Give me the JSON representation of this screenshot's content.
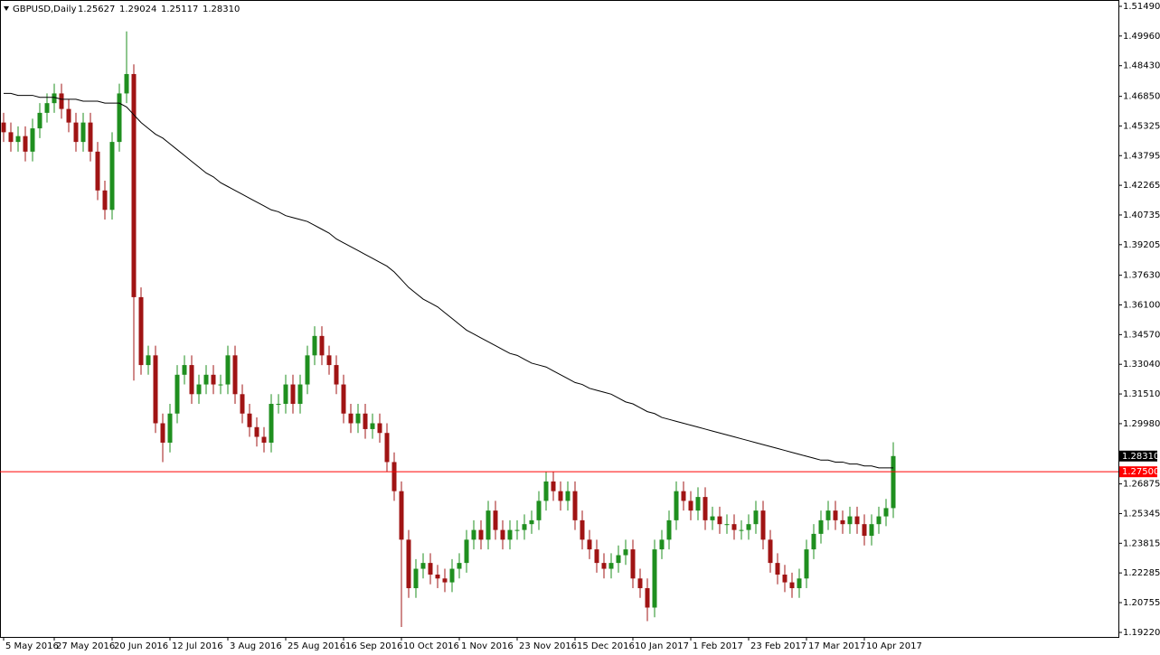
{
  "chart_data": {
    "type": "candlestick",
    "symbol": "GBPUSD,Daily",
    "header_ohlc": [
      1.25627,
      1.29024,
      1.25117,
      {
        "value": 1.2831,
        "label": "1.28310"
      }
    ],
    "categories": [
      "5 May 2016",
      null,
      null,
      null,
      null,
      null,
      null,
      "27 May 2016",
      null,
      null,
      null,
      null,
      null,
      null,
      null,
      "20 Jun 2016",
      null,
      null,
      null,
      null,
      null,
      null,
      null,
      "12 Jul 2016",
      null,
      null,
      null,
      null,
      null,
      null,
      null,
      "3 Aug 2016",
      null,
      null,
      null,
      null,
      null,
      null,
      null,
      "25 Aug 2016",
      null,
      null,
      null,
      null,
      null,
      null,
      null,
      "16 Sep 2016",
      null,
      null,
      null,
      null,
      null,
      null,
      null,
      "10 Oct 2016",
      null,
      null,
      null,
      null,
      null,
      null,
      null,
      "1 Nov 2016",
      null,
      null,
      null,
      null,
      null,
      null,
      null,
      "23 Nov 2016",
      null,
      null,
      null,
      null,
      null,
      null,
      null,
      "15 Dec 2016",
      null,
      null,
      null,
      null,
      null,
      null,
      null,
      "10 Jan 2017",
      null,
      null,
      null,
      null,
      null,
      null,
      null,
      "1 Feb 2017",
      null,
      null,
      null,
      null,
      null,
      null,
      null,
      "23 Feb 2017",
      null,
      null,
      null,
      null,
      null,
      null,
      null,
      "17 Mar 2017",
      null,
      null,
      null,
      null,
      null,
      null,
      null,
      "10 Apr 2017",
      null,
      null,
      null,
      null
    ],
    "open": [
      1.455,
      1.45,
      1.445,
      1.448,
      1.44,
      1.452,
      1.46,
      1.465,
      1.47,
      1.462,
      1.455,
      1.445,
      1.455,
      1.44,
      1.42,
      1.41,
      1.445,
      1.47,
      1.48,
      1.365,
      1.33,
      1.335,
      1.3,
      1.29,
      1.305,
      1.325,
      1.33,
      1.315,
      1.32,
      1.325,
      1.32,
      1.32,
      1.335,
      1.315,
      1.305,
      1.298,
      1.293,
      1.29,
      1.31,
      1.31,
      1.32,
      1.31,
      1.32,
      1.335,
      1.345,
      1.335,
      1.33,
      1.32,
      1.305,
      1.3,
      1.305,
      1.297,
      1.3,
      1.295,
      1.28,
      1.265,
      1.24,
      1.215,
      1.225,
      1.228,
      1.222,
      1.22,
      1.218,
      1.225,
      1.228,
      1.24,
      1.245,
      1.24,
      1.255,
      1.245,
      1.24,
      1.245,
      1.245,
      1.248,
      1.25,
      1.26,
      1.27,
      1.265,
      1.26,
      1.265,
      1.25,
      1.24,
      1.235,
      1.228,
      1.225,
      1.228,
      1.232,
      1.235,
      1.22,
      1.215,
      1.205,
      1.235,
      1.24,
      1.25,
      1.265,
      1.26,
      1.255,
      1.262,
      1.25,
      1.252,
      1.248,
      1.248,
      1.245,
      1.245,
      1.248,
      1.255,
      1.24,
      1.228,
      1.222,
      1.218,
      1.215,
      1.22,
      1.235,
      1.243,
      1.25,
      1.255,
      1.25,
      1.248,
      1.252,
      1.248,
      1.242,
      1.248,
      1.252,
      1.25627
    ],
    "high": [
      1.46,
      1.455,
      1.453,
      1.453,
      1.457,
      1.465,
      1.47,
      1.475,
      1.475,
      1.467,
      1.46,
      1.46,
      1.46,
      1.445,
      1.425,
      1.45,
      1.475,
      1.502,
      1.485,
      1.37,
      1.34,
      1.34,
      1.305,
      1.31,
      1.33,
      1.335,
      1.335,
      1.325,
      1.33,
      1.33,
      1.325,
      1.34,
      1.34,
      1.32,
      1.31,
      1.303,
      1.298,
      1.315,
      1.315,
      1.325,
      1.325,
      1.325,
      1.34,
      1.35,
      1.35,
      1.34,
      1.335,
      1.325,
      1.31,
      1.31,
      1.31,
      1.305,
      1.305,
      1.3,
      1.285,
      1.27,
      1.245,
      1.23,
      1.233,
      1.233,
      1.227,
      1.225,
      1.23,
      1.233,
      1.245,
      1.25,
      1.25,
      1.26,
      1.26,
      1.25,
      1.25,
      1.25,
      1.253,
      1.255,
      1.265,
      1.275,
      1.275,
      1.27,
      1.27,
      1.27,
      1.255,
      1.245,
      1.24,
      1.233,
      1.233,
      1.237,
      1.24,
      1.24,
      1.225,
      1.22,
      1.24,
      1.245,
      1.255,
      1.27,
      1.27,
      1.265,
      1.267,
      1.267,
      1.257,
      1.257,
      1.253,
      1.253,
      1.25,
      1.253,
      1.26,
      1.26,
      1.245,
      1.233,
      1.227,
      1.223,
      1.225,
      1.24,
      1.248,
      1.255,
      1.26,
      1.26,
      1.255,
      1.257,
      1.257,
      1.253,
      1.253,
      1.257,
      1.261,
      1.29024
    ],
    "low": [
      1.445,
      1.44,
      1.44,
      1.435,
      1.435,
      1.447,
      1.455,
      1.46,
      1.457,
      1.45,
      1.44,
      1.44,
      1.435,
      1.415,
      1.405,
      1.405,
      1.44,
      1.465,
      1.322,
      1.325,
      1.325,
      1.295,
      1.28,
      1.285,
      1.3,
      1.32,
      1.31,
      1.31,
      1.315,
      1.315,
      1.315,
      1.315,
      1.31,
      1.3,
      1.293,
      1.288,
      1.285,
      1.285,
      1.305,
      1.305,
      1.305,
      1.305,
      1.315,
      1.33,
      1.33,
      1.325,
      1.315,
      1.3,
      1.295,
      1.295,
      1.292,
      1.292,
      1.29,
      1.275,
      1.26,
      1.195,
      1.21,
      1.21,
      1.22,
      1.217,
      1.215,
      1.213,
      1.213,
      1.22,
      1.223,
      1.235,
      1.235,
      1.235,
      1.24,
      1.235,
      1.235,
      1.24,
      1.24,
      1.243,
      1.245,
      1.255,
      1.26,
      1.255,
      1.255,
      1.245,
      1.235,
      1.23,
      1.223,
      1.22,
      1.22,
      1.223,
      1.227,
      1.215,
      1.21,
      1.198,
      1.2,
      1.23,
      1.235,
      1.245,
      1.255,
      1.25,
      1.25,
      1.245,
      1.245,
      1.243,
      1.243,
      1.24,
      1.24,
      1.24,
      1.243,
      1.235,
      1.223,
      1.217,
      1.213,
      1.21,
      1.21,
      1.215,
      1.23,
      1.238,
      1.245,
      1.245,
      1.243,
      1.243,
      1.243,
      1.237,
      1.237,
      1.243,
      1.247,
      1.25117
    ],
    "close": [
      1.45,
      1.445,
      1.448,
      1.44,
      1.452,
      1.46,
      1.465,
      1.47,
      1.462,
      1.455,
      1.445,
      1.455,
      1.44,
      1.42,
      1.41,
      1.445,
      1.47,
      1.48,
      1.365,
      1.33,
      1.335,
      1.3,
      1.29,
      1.305,
      1.325,
      1.33,
      1.315,
      1.32,
      1.325,
      1.32,
      1.32,
      1.335,
      1.315,
      1.305,
      1.298,
      1.293,
      1.29,
      1.31,
      1.31,
      1.32,
      1.31,
      1.32,
      1.335,
      1.345,
      1.335,
      1.33,
      1.32,
      1.305,
      1.3,
      1.305,
      1.297,
      1.3,
      1.295,
      1.28,
      1.265,
      1.24,
      1.215,
      1.225,
      1.228,
      1.222,
      1.22,
      1.218,
      1.225,
      1.228,
      1.24,
      1.245,
      1.24,
      1.255,
      1.245,
      1.24,
      1.245,
      1.245,
      1.248,
      1.25,
      1.26,
      1.27,
      1.265,
      1.26,
      1.265,
      1.25,
      1.24,
      1.235,
      1.228,
      1.225,
      1.228,
      1.232,
      1.235,
      1.22,
      1.215,
      1.205,
      1.235,
      1.24,
      1.25,
      1.265,
      1.26,
      1.255,
      1.262,
      1.25,
      1.252,
      1.248,
      1.248,
      1.245,
      1.245,
      1.248,
      1.255,
      1.24,
      1.228,
      1.222,
      1.218,
      1.215,
      1.22,
      1.235,
      1.243,
      1.25,
      1.255,
      1.25,
      1.248,
      1.252,
      1.248,
      1.242,
      1.248,
      1.252,
      1.25627,
      1.2831
    ],
    "ma": [
      1.47,
      1.47,
      1.469,
      1.469,
      1.469,
      1.468,
      1.468,
      1.468,
      1.467,
      1.467,
      1.467,
      1.466,
      1.466,
      1.466,
      1.465,
      1.465,
      1.465,
      1.463,
      1.459,
      1.455,
      1.452,
      1.449,
      1.447,
      1.444,
      1.441,
      1.438,
      1.435,
      1.432,
      1.429,
      1.427,
      1.424,
      1.422,
      1.42,
      1.418,
      1.416,
      1.414,
      1.412,
      1.41,
      1.409,
      1.407,
      1.406,
      1.405,
      1.404,
      1.402,
      1.4,
      1.398,
      1.395,
      1.393,
      1.391,
      1.389,
      1.387,
      1.385,
      1.383,
      1.381,
      1.378,
      1.374,
      1.37,
      1.367,
      1.364,
      1.362,
      1.36,
      1.357,
      1.354,
      1.351,
      1.348,
      1.346,
      1.344,
      1.342,
      1.34,
      1.338,
      1.336,
      1.335,
      1.333,
      1.331,
      1.33,
      1.329,
      1.327,
      1.325,
      1.323,
      1.321,
      1.32,
      1.318,
      1.317,
      1.316,
      1.315,
      1.313,
      1.311,
      1.31,
      1.308,
      1.306,
      1.305,
      1.303,
      1.302,
      1.301,
      1.3,
      1.299,
      1.298,
      1.297,
      1.296,
      1.295,
      1.294,
      1.293,
      1.292,
      1.291,
      1.29,
      1.289,
      1.288,
      1.287,
      1.286,
      1.285,
      1.284,
      1.283,
      1.282,
      1.281,
      1.281,
      1.28,
      1.28,
      1.279,
      1.279,
      1.278,
      1.278,
      1.277,
      1.277,
      1.277
    ],
    "up_color": "#1f8f1f",
    "down_color": "#a01414",
    "ma_color": "#000000",
    "ylim": [
      1.18987,
      1.51816
    ],
    "yticks": [
      {
        "value": 1.5149,
        "label": "1.51490"
      },
      {
        "value": 1.4996,
        "label": "1.49960"
      },
      {
        "value": 1.4843,
        "label": "1.48430"
      },
      {
        "value": 1.4685,
        "label": "1.46850"
      },
      1.45325,
      1.43795,
      1.42265,
      1.40735,
      1.39205,
      {
        "value": 1.3763,
        "label": "1.37630"
      },
      {
        "value": 1.361,
        "label": "1.36100"
      },
      {
        "value": 1.3457,
        "label": "1.34570"
      },
      {
        "value": 1.3304,
        "label": "1.33040"
      },
      {
        "value": 1.3151,
        "label": "1.31510"
      },
      {
        "value": 1.2998,
        "label": "1.29980"
      },
      1.26875,
      1.25345,
      1.23815,
      1.22285,
      1.20755,
      {
        "value": 1.1922,
        "label": "1.19220"
      }
    ],
    "current_price": {
      "value": 1.2831,
      "label": "1.28310"
    },
    "hline": {
      "value": 1.275,
      "label": "1.27500",
      "color": "#ff0000"
    },
    "grid": false
  }
}
